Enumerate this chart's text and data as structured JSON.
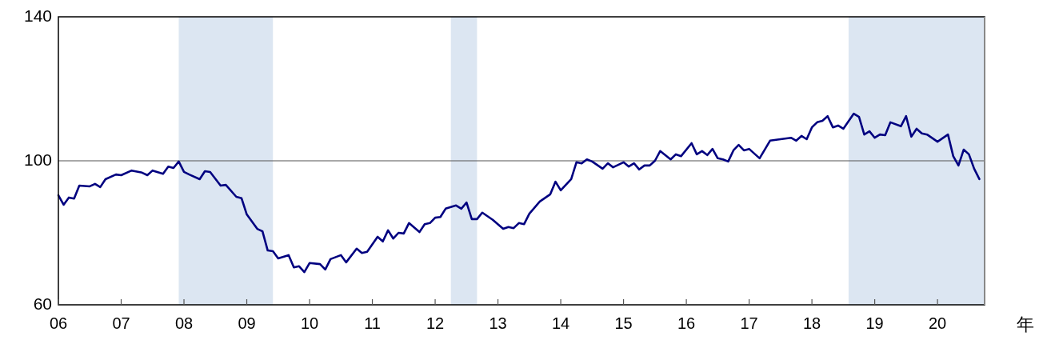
{
  "chart_data": {
    "type": "line",
    "xlabel": "年",
    "x": [
      "2006-01",
      "2006-02",
      "2006-03",
      "2006-04",
      "2006-05",
      "2006-07",
      "2006-08",
      "2006-09",
      "2006-10",
      "2006-12",
      "2007-01",
      "2007-03",
      "2007-05",
      "2007-06",
      "2007-07",
      "2007-09",
      "2007-10",
      "2007-11",
      "2007-12",
      "2008-01",
      "2008-02",
      "2008-04",
      "2008-05",
      "2008-06",
      "2008-08",
      "2008-09",
      "2008-11",
      "2008-12",
      "2009-01",
      "2009-03",
      "2009-04",
      "2009-05",
      "2009-06",
      "2009-07",
      "2009-09",
      "2009-10",
      "2009-11",
      "2009-12",
      "2010-01",
      "2010-03",
      "2010-04",
      "2010-05",
      "2010-07",
      "2010-08",
      "2010-10",
      "2010-11",
      "2010-12",
      "2011-02",
      "2011-03",
      "2011-04",
      "2011-05",
      "2011-06",
      "2011-07",
      "2011-08",
      "2011-10",
      "2011-11",
      "2011-12",
      "2012-01",
      "2012-02",
      "2012-03",
      "2012-05",
      "2012-06",
      "2012-07",
      "2012-08",
      "2012-09",
      "2012-10",
      "2012-12",
      "2013-02",
      "2013-03",
      "2013-04",
      "2013-05",
      "2013-06",
      "2013-07",
      "2013-09",
      "2013-11",
      "2013-12",
      "2014-01",
      "2014-03",
      "2014-04",
      "2014-05",
      "2014-06",
      "2014-07",
      "2014-09",
      "2014-10",
      "2014-11",
      "2015-01",
      "2015-02",
      "2015-03",
      "2015-04",
      "2015-05",
      "2015-06",
      "2015-07",
      "2015-08",
      "2015-10",
      "2015-11",
      "2015-12",
      "2016-02",
      "2016-03",
      "2016-04",
      "2016-05",
      "2016-06",
      "2016-07",
      "2016-08",
      "2016-09",
      "2016-10",
      "2016-11",
      "2016-12",
      "2017-01",
      "2017-03",
      "2017-05",
      "2017-07",
      "2017-09",
      "2017-10",
      "2017-11",
      "2017-12",
      "2018-01",
      "2018-02",
      "2018-03",
      "2018-04",
      "2018-05",
      "2018-06",
      "2018-07",
      "2018-09",
      "2018-10",
      "2018-11",
      "2018-12",
      "2019-01",
      "2019-02",
      "2019-03",
      "2019-04",
      "2019-06",
      "2019-07",
      "2019-08",
      "2019-09",
      "2019-10",
      "2019-11",
      "2020-01",
      "2020-03",
      "2020-04",
      "2020-05",
      "2020-06",
      "2020-07",
      "2020-08",
      "2020-09"
    ],
    "series": [
      {
        "color": "#000080",
        "values": [
          90.4,
          87.8,
          89.8,
          89.5,
          93.1,
          92.9,
          93.6,
          92.7,
          94.9,
          96.2,
          96.0,
          97.3,
          96.7,
          96.0,
          97.3,
          96.4,
          98.4,
          98.0,
          99.8,
          96.9,
          96.2,
          94.9,
          97.1,
          96.9,
          93.1,
          93.3,
          90.0,
          89.6,
          85.1,
          81.1,
          80.4,
          75.1,
          74.9,
          72.9,
          73.8,
          70.4,
          70.7,
          69.1,
          71.6,
          71.3,
          69.8,
          72.7,
          73.8,
          71.8,
          75.6,
          74.4,
          74.7,
          78.9,
          77.6,
          80.7,
          78.4,
          80.0,
          79.8,
          82.7,
          80.2,
          82.4,
          82.7,
          84.2,
          84.4,
          86.7,
          87.6,
          86.7,
          88.4,
          83.8,
          83.8,
          85.6,
          83.6,
          81.1,
          81.6,
          81.3,
          82.7,
          82.4,
          85.3,
          88.7,
          90.7,
          94.2,
          91.8,
          94.9,
          99.6,
          99.3,
          100.4,
          99.8,
          97.8,
          99.3,
          98.2,
          99.6,
          98.4,
          99.3,
          97.6,
          98.7,
          98.7,
          100.0,
          102.7,
          100.4,
          101.8,
          101.3,
          104.9,
          101.8,
          102.7,
          101.6,
          103.3,
          100.7,
          100.4,
          99.8,
          102.9,
          104.4,
          102.9,
          103.3,
          100.7,
          105.6,
          106.0,
          106.4,
          105.6,
          106.9,
          106.0,
          109.3,
          110.7,
          111.1,
          112.4,
          109.3,
          109.8,
          108.9,
          113.1,
          112.2,
          107.3,
          108.2,
          106.4,
          107.3,
          107.1,
          110.7,
          109.6,
          112.4,
          106.7,
          108.9,
          107.6,
          107.3,
          105.3,
          107.3,
          101.3,
          98.7,
          103.1,
          101.8,
          97.8,
          94.9
        ]
      }
    ],
    "xlim": [
      "2006-01",
      "2020-10"
    ],
    "xticks": [
      {
        "value": "2006-01",
        "label": "06"
      },
      {
        "value": "2007-01",
        "label": "07"
      },
      {
        "value": "2008-01",
        "label": "08"
      },
      {
        "value": "2009-01",
        "label": "09"
      },
      {
        "value": "2010-01",
        "label": "10"
      },
      {
        "value": "2011-01",
        "label": "11"
      },
      {
        "value": "2012-01",
        "label": "12"
      },
      {
        "value": "2013-01",
        "label": "13"
      },
      {
        "value": "2014-01",
        "label": "14"
      },
      {
        "value": "2015-01",
        "label": "15"
      },
      {
        "value": "2016-01",
        "label": "16"
      },
      {
        "value": "2017-01",
        "label": "17"
      },
      {
        "value": "2018-01",
        "label": "18"
      },
      {
        "value": "2019-01",
        "label": "19"
      },
      {
        "value": "2020-01",
        "label": "20"
      }
    ],
    "ylim": [
      60,
      140
    ],
    "yticks": [
      60,
      100,
      140
    ],
    "ref_lines": [
      {
        "axis": "y",
        "value": 100,
        "color": "#555555"
      }
    ],
    "bands": [
      {
        "axis": "x",
        "from": "2007-12",
        "to": "2009-06",
        "color": "#dce6f2"
      },
      {
        "axis": "x",
        "from": "2012-04",
        "to": "2012-09",
        "color": "#dce6f2"
      },
      {
        "axis": "x",
        "from": "2018-08",
        "to": "2020-10",
        "color": "#dce6f2"
      }
    ]
  }
}
